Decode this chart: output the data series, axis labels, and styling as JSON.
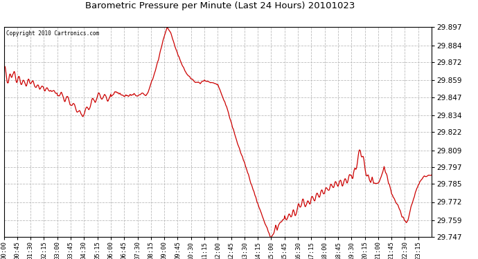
{
  "title": "Barometric Pressure per Minute (Last 24 Hours) 20101023",
  "copyright": "Copyright 2010 Cartronics.com",
  "line_color": "#cc0000",
  "background_color": "#ffffff",
  "plot_bg_color": "#ffffff",
  "grid_color": "#aaaaaa",
  "ylim": [
    29.747,
    29.897
  ],
  "yticks": [
    29.747,
    29.759,
    29.772,
    29.785,
    29.797,
    29.809,
    29.822,
    29.834,
    29.847,
    29.859,
    29.872,
    29.884,
    29.897
  ],
  "xtick_labels": [
    "00:00",
    "00:45",
    "01:30",
    "02:15",
    "03:00",
    "03:45",
    "04:30",
    "05:15",
    "06:00",
    "06:45",
    "07:30",
    "08:15",
    "09:00",
    "09:45",
    "10:30",
    "11:15",
    "12:00",
    "12:45",
    "13:30",
    "14:15",
    "15:00",
    "15:45",
    "16:30",
    "17:15",
    "18:00",
    "18:45",
    "19:30",
    "20:15",
    "21:00",
    "21:45",
    "22:30",
    "23:15"
  ]
}
